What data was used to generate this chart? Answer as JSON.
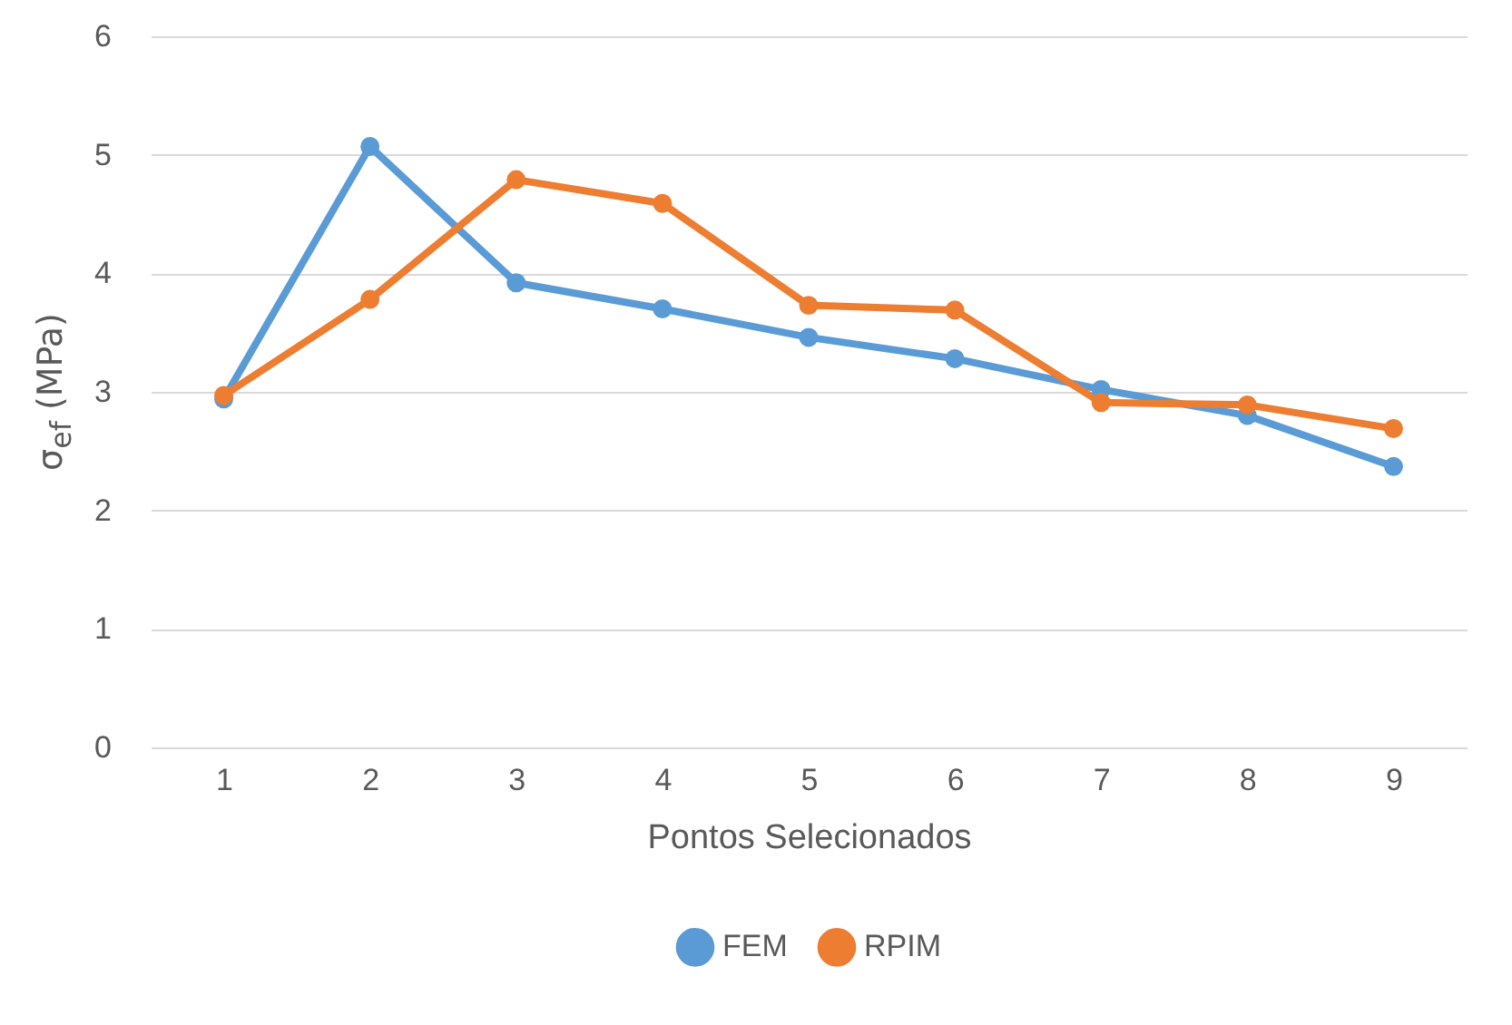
{
  "chart_data": {
    "type": "line",
    "xlabel": "Pontos Selecionados",
    "ylabel": "σ$_{ef}$ (MPa)",
    "categories": [
      "1",
      "2",
      "3",
      "4",
      "5",
      "6",
      "7",
      "8",
      "9"
    ],
    "series": [
      {
        "name": "FEM",
        "color": "#5b9bd5",
        "values": [
          2.94,
          5.07,
          3.92,
          3.7,
          3.46,
          3.28,
          3.02,
          2.8,
          2.37
        ]
      },
      {
        "name": "RPIM",
        "color": "#ed7d31",
        "values": [
          2.97,
          3.78,
          4.79,
          4.59,
          3.73,
          3.69,
          2.91,
          2.89,
          2.69
        ]
      }
    ],
    "ylim": [
      0,
      6
    ],
    "yticks": [
      0,
      1,
      2,
      3,
      4,
      5,
      6
    ],
    "grid": "y",
    "legend": "bottom",
    "marker": "circle",
    "line_style": "solid"
  }
}
